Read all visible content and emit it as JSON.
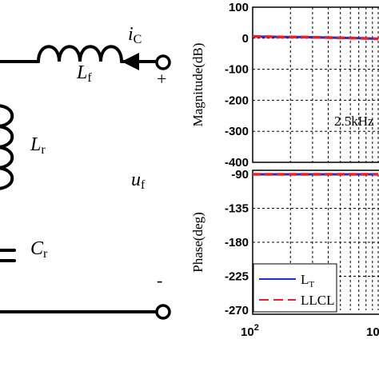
{
  "circuit": {
    "current_symbol": "i",
    "current_sub": "C",
    "filter_inductor_symbol": "L",
    "filter_inductor_sub": "f",
    "resonant_inductor_symbol": "L",
    "resonant_inductor_sub": "r",
    "capacitor_symbol": "C",
    "capacitor_sub": "r",
    "voltage_symbol": "u",
    "voltage_sub": "f",
    "plus_sign": "+",
    "minus_sign": "-"
  },
  "chart_data": [
    {
      "type": "line",
      "panel": "magnitude",
      "ylabel": "Magnitude(dB)",
      "yticks": [
        "100",
        "0",
        "-100",
        "-200",
        "-300",
        "-400"
      ],
      "ylim": [
        -400,
        100
      ],
      "xscale": "log",
      "annotation": "2.5kHz",
      "grid": true,
      "series": [
        {
          "name": "L_T",
          "color": "#1a2fd6",
          "style": "solid",
          "x": [
            100,
            130,
            170,
            220,
            300,
            400,
            550,
            700,
            900,
            1000
          ],
          "y": [
            5,
            5,
            4,
            4,
            3,
            2,
            1,
            0,
            -1,
            -2
          ]
        },
        {
          "name": "LLCL",
          "color": "#e8202a",
          "style": "dashed",
          "x": [
            100,
            130,
            170,
            220,
            300,
            400,
            550,
            700,
            900,
            1000
          ],
          "y": [
            6,
            5,
            4,
            4,
            3,
            2,
            1,
            0,
            -1,
            -2
          ]
        }
      ]
    },
    {
      "type": "line",
      "panel": "phase",
      "ylabel": "Phase(deg)",
      "yticks": [
        "-90",
        "-135",
        "-180",
        "-225",
        "-270"
      ],
      "ylim": [
        -270,
        -90
      ],
      "xscale": "log",
      "xticks": [
        {
          "base": "10",
          "exp": "2"
        },
        {
          "base": "10",
          "exp": ""
        }
      ],
      "grid": true,
      "legend_position": "bottom-left",
      "series": [
        {
          "name": "L_T",
          "color": "#1a2fd6",
          "style": "solid",
          "x": [
            100,
            200,
            400,
            700,
            1000
          ],
          "y": [
            -90,
            -90,
            -90,
            -90,
            -90
          ]
        },
        {
          "name": "LLCL",
          "color": "#e8202a",
          "style": "dashed",
          "x": [
            100,
            200,
            400,
            700,
            1000
          ],
          "y": [
            -90,
            -90,
            -90,
            -90,
            -90
          ]
        }
      ]
    }
  ],
  "legend": {
    "entry1_main": "L",
    "entry1_sub": "T",
    "entry2": "LLCL"
  }
}
